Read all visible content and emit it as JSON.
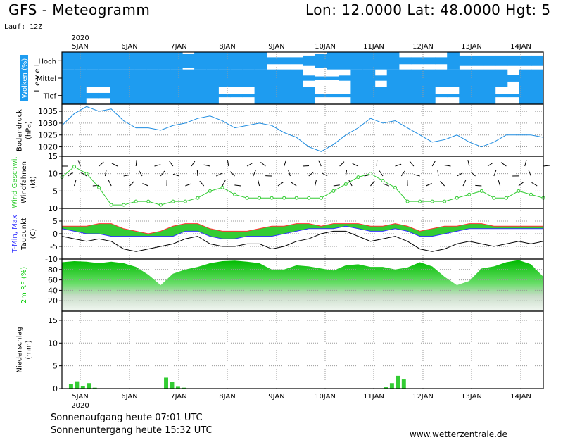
{
  "header": {
    "title": "GFS - Meteogramm",
    "coords": "Lon: 12.0000  Lat: 48.0000  Hgt: 5",
    "run": "Lauf: 12Z"
  },
  "footer": {
    "sunrise": "Sonnenaufgang heute 07:01 UTC",
    "sunset": "Sonnenuntergang heute 15:32 UTC",
    "website": "www.wetterzentrale.de"
  },
  "colors": {
    "cloud_blue": "#1e9cf0",
    "pressure_line": "#1e8ce0",
    "wind_green": "#33cc33",
    "rh_green": "#00cc00",
    "precip_green": "#33cc33",
    "temp_red": "#ff3333",
    "temp_blue": "#3333ff",
    "dew_black": "#000000"
  },
  "chart_data": [
    {
      "type": "area",
      "panel": "clouds",
      "ylabel": [
        "Wolken (%)",
        "L e v e l"
      ],
      "levels": [
        "Hoch",
        "Mittel",
        "Tief"
      ],
      "x_labels": [
        "5JAN",
        "6JAN",
        "7JAN",
        "8JAN",
        "9JAN",
        "10JAN",
        "11JAN",
        "12JAN",
        "13JAN",
        "14JAN"
      ],
      "year_label": "2020",
      "series": [
        {
          "name": "Hoch",
          "values": [
            100,
            100,
            100,
            100,
            100,
            100,
            100,
            100,
            100,
            100,
            80,
            100,
            100,
            100,
            100,
            100,
            100,
            40,
            40,
            40,
            60,
            80,
            100,
            100,
            100,
            100,
            100,
            100,
            40,
            40,
            40,
            40,
            100,
            60,
            60,
            60,
            60,
            60,
            60,
            60
          ]
        },
        {
          "name": "Mittel",
          "values": [
            100,
            100,
            100,
            100,
            100,
            100,
            100,
            100,
            100,
            100,
            100,
            100,
            100,
            100,
            100,
            100,
            100,
            100,
            100,
            100,
            30,
            20,
            20,
            30,
            100,
            100,
            30,
            100,
            100,
            100,
            100,
            100,
            100,
            100,
            100,
            100,
            100,
            40,
            100,
            100
          ]
        },
        {
          "name": "Tief",
          "values": [
            100,
            100,
            30,
            30,
            100,
            100,
            100,
            100,
            100,
            100,
            100,
            100,
            100,
            20,
            20,
            20,
            100,
            100,
            100,
            100,
            100,
            20,
            20,
            20,
            100,
            100,
            100,
            100,
            100,
            100,
            100,
            20,
            20,
            100,
            100,
            100,
            20,
            20,
            100,
            100
          ]
        }
      ]
    },
    {
      "type": "line",
      "panel": "pressure",
      "ylabel": [
        "Bodendruck",
        "(hPa)"
      ],
      "ylim": [
        1016,
        1038
      ],
      "yticks": [
        1020,
        1025,
        1030,
        1035
      ],
      "series": [
        {
          "name": "Bodendruck",
          "values": [
            1029,
            1034,
            1037,
            1035,
            1036,
            1031,
            1028,
            1028,
            1027,
            1029,
            1030,
            1032,
            1033,
            1031,
            1028,
            1029,
            1030,
            1029,
            1026,
            1024,
            1020,
            1018,
            1021,
            1025,
            1028,
            1032,
            1030,
            1031,
            1028,
            1025,
            1022,
            1023,
            1025,
            1022,
            1020,
            1022,
            1025,
            1025,
            1025,
            1024
          ]
        }
      ]
    },
    {
      "type": "line",
      "panel": "wind",
      "ylabel": [
        "Wind Geschwi.",
        "Windfahnen",
        "(kt)"
      ],
      "ylim": [
        0,
        15
      ],
      "yticks": [
        0,
        5,
        10,
        15
      ],
      "series": [
        {
          "name": "Wind Geschwi.",
          "values": [
            9,
            12,
            10,
            6,
            1,
            1,
            2,
            2,
            1,
            2,
            2,
            3,
            5,
            6,
            4,
            3,
            3,
            3,
            3,
            3,
            3,
            3,
            5,
            7,
            9,
            10,
            8,
            6,
            2,
            2,
            2,
            2,
            3,
            4,
            5,
            3,
            3,
            5,
            4,
            3
          ]
        }
      ]
    },
    {
      "type": "area",
      "panel": "temperature",
      "ylabel": [
        "T-Min, Max",
        "Taupunkt",
        "(C)"
      ],
      "ylim": [
        -10,
        10
      ],
      "yticks": [
        -10,
        -5,
        0,
        5,
        10
      ],
      "series": [
        {
          "name": "T-Max",
          "values": [
            3,
            3,
            3,
            4,
            4,
            2,
            1,
            0,
            1,
            3,
            4,
            4,
            2,
            1,
            1,
            1,
            2,
            3,
            3,
            4,
            4,
            3,
            4,
            4,
            4,
            3,
            3,
            4,
            3,
            1,
            2,
            3,
            3,
            4,
            4,
            3,
            3,
            3,
            3,
            3
          ]
        },
        {
          "name": "T-Min",
          "values": [
            2,
            1,
            0,
            0,
            -1,
            -1,
            -1,
            -1,
            -1,
            -1,
            1,
            1,
            -1,
            -2,
            -2,
            -1,
            -1,
            -1,
            0,
            1,
            2,
            2,
            2,
            3,
            2,
            1,
            1,
            2,
            1,
            -1,
            -1,
            0,
            1,
            2,
            2,
            2,
            2,
            2,
            2,
            2
          ]
        },
        {
          "name": "Taupunkt",
          "values": [
            -1,
            -2,
            -3,
            -2,
            -3,
            -6,
            -7,
            -6,
            -5,
            -4,
            -2,
            -1,
            -4,
            -5,
            -5,
            -4,
            -4,
            -6,
            -5,
            -3,
            -2,
            0,
            1,
            1,
            -1,
            -3,
            -2,
            -1,
            -3,
            -6,
            -7,
            -6,
            -4,
            -3,
            -4,
            -5,
            -4,
            -3,
            -4,
            -3
          ]
        }
      ]
    },
    {
      "type": "area",
      "panel": "humidity",
      "ylabel": [
        "2m RF (%)"
      ],
      "ylim": [
        0,
        100
      ],
      "yticks": [
        20,
        40,
        60,
        80
      ],
      "series": [
        {
          "name": "2m RF",
          "values": [
            94,
            96,
            95,
            92,
            95,
            92,
            85,
            70,
            50,
            72,
            80,
            85,
            92,
            96,
            97,
            95,
            92,
            80,
            80,
            88,
            86,
            82,
            78,
            88,
            90,
            85,
            85,
            80,
            84,
            94,
            86,
            66,
            50,
            58,
            82,
            86,
            94,
            98,
            90,
            66
          ]
        }
      ]
    },
    {
      "type": "bar",
      "panel": "precipitation",
      "ylabel": [
        "Niederschlag",
        "(mm)"
      ],
      "ylim": [
        0,
        17
      ],
      "yticks": [
        0,
        5,
        10,
        15
      ],
      "series": [
        {
          "name": "Niederschlag",
          "values": [
            0,
            1.0,
            1.6,
            0.6,
            1.2,
            0.2,
            0,
            0,
            0,
            0,
            0,
            0,
            0,
            0,
            0,
            0,
            0,
            2.4,
            1.4,
            0.4,
            0.2,
            0,
            0,
            0,
            0,
            0,
            0,
            0,
            0,
            0,
            0,
            0,
            0,
            0,
            0,
            0,
            0,
            0,
            0,
            0,
            0,
            0,
            0,
            0,
            0,
            0,
            0,
            0,
            0,
            0,
            0,
            0,
            0,
            0,
            0.3,
            1.2,
            2.8,
            2.0,
            0,
            0,
            0,
            0,
            0,
            0,
            0,
            0,
            0,
            0,
            0,
            0,
            0,
            0,
            0,
            0,
            0,
            0,
            0,
            0,
            0,
            0,
            0
          ]
        }
      ]
    }
  ]
}
